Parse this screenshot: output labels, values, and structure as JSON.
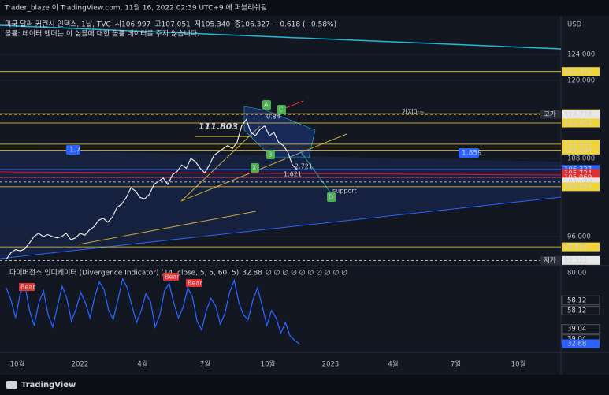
{
  "header": {
    "published": "Trader_blaze 이 TradingView.com, 11월 16, 2022 02:39 UTC+9 에 퍼블리쉬됨",
    "symbol": "미국 달러 커런시 인덱스, 1날, TVC",
    "open": "시106.997",
    "high": "고107.051",
    "low": "저105.340",
    "close": "종106.327",
    "change": "−0.618 (−0.58%)",
    "notice": "볼륨: 데이터 벤더는 이 심볼에 대한 볼륨 데이터를 주지 않습니다.",
    "currency": "USD"
  },
  "price_axis": {
    "ticks": [
      {
        "value": 124,
        "label": "124.000"
      },
      {
        "value": 120,
        "label": "120.000"
      },
      {
        "value": 108,
        "label": "108.000"
      },
      {
        "value": 96,
        "label": "96.000"
      }
    ],
    "markers": [
      {
        "value": 121.372,
        "label": "121.372",
        "color": "#f0d43a"
      },
      {
        "value": 114.888,
        "label": "114.888",
        "color": "#f0d43a"
      },
      {
        "value": 114.778,
        "label": "114.778",
        "color": "#e8e8e8",
        "tag": "고가"
      },
      {
        "value": 113.452,
        "label": "113.452",
        "color": "#f0d43a"
      },
      {
        "value": 110.2,
        "label": "110.200",
        "color": "#f0d43a"
      },
      {
        "value": 109.744,
        "label": "109.744",
        "color": "#f0d43a"
      },
      {
        "value": 109.284,
        "label": "109.284",
        "color": "#f0d43a"
      },
      {
        "value": 106.327,
        "label": "106.327",
        "color": "#2962ff",
        "countdown": "06:20:46"
      },
      {
        "value": 105.724,
        "label": "105.724",
        "color": "#e0302f"
      },
      {
        "value": 105.069,
        "label": "105.069",
        "color": "#e0302f"
      },
      {
        "value": 104.378,
        "label": "104.378",
        "color": "#e8e8e8"
      },
      {
        "value": 103.654,
        "label": "103.654",
        "color": "#f0d43a"
      },
      {
        "value": 94.412,
        "label": "94.412",
        "color": "#f0d43a"
      },
      {
        "value": 92.322,
        "label": "92.322",
        "color": "#e8e8e8",
        "tag": "저가"
      }
    ]
  },
  "price": [
    92.5,
    93.5,
    94,
    93.8,
    94.1,
    95,
    96,
    96.5,
    96,
    96.3,
    96,
    95.8,
    96,
    96.5,
    95.5,
    95.8,
    96.5,
    96.2,
    97,
    97.5,
    98.5,
    98.8,
    98.2,
    99,
    100.5,
    101,
    102,
    103.5,
    103,
    102,
    101.8,
    102.5,
    104,
    104.5,
    105,
    104,
    105.5,
    106,
    107,
    106.5,
    108,
    107.5,
    106.5,
    105.8,
    107,
    108.5,
    109,
    109.5,
    110,
    109.5,
    110.5,
    113,
    114,
    112,
    111.5,
    112.5,
    113,
    111.5,
    112,
    110.5,
    110,
    109,
    107,
    106.3
  ],
  "annotations": {
    "fib_level": "111.803",
    "left_ratio": "1.7",
    "right_ratio": "1.859",
    "comment": "가지마~",
    "support": "support",
    "points": [
      "A",
      "B",
      "C",
      "X",
      "D"
    ],
    "ratios": [
      "0.84",
      "1.621",
      "2.721"
    ]
  },
  "indicator": {
    "title": "다이버전스 인디케이터 (Divergence Indicator) (14, close, 5, 5, 60, 5)",
    "current": "32.88",
    "placeholders": "∅ ∅ ∅ ∅ ∅ ∅ ∅ ∅ ∅ ∅",
    "values": [
      70,
      62,
      50,
      66,
      72,
      55,
      45,
      60,
      68,
      52,
      44,
      58,
      71,
      63,
      48,
      56,
      67,
      60,
      50,
      64,
      74,
      69,
      55,
      49,
      62,
      76,
      70,
      58,
      47,
      55,
      66,
      61,
      44,
      52,
      68,
      73,
      60,
      50,
      57,
      70,
      64,
      48,
      42,
      55,
      63,
      58,
      46,
      53,
      67,
      75,
      60,
      52,
      49,
      62,
      70,
      58,
      45,
      55,
      50,
      40,
      47,
      38,
      35,
      32.88
    ],
    "ticks": [
      {
        "value": 80,
        "label": "80.00"
      }
    ],
    "markers": [
      {
        "value": 58.12,
        "label": "58.12",
        "color": "#e8e8e8"
      },
      {
        "value": 58.12,
        "label": "58.12",
        "color": "#e8e8e8"
      },
      {
        "value": 39.04,
        "label": "39.04",
        "color": "#e8e8e8"
      },
      {
        "value": 39.04,
        "label": "39.04",
        "color": "#e8e8e8"
      },
      {
        "value": 32.88,
        "label": "32.88",
        "color": "#2962ff"
      }
    ],
    "signals": [
      "Bear",
      "Bear",
      "Bear"
    ]
  },
  "time_axis": [
    "10월",
    "2022",
    "4월",
    "7월",
    "10월",
    "2023",
    "4월",
    "7월",
    "10월"
  ],
  "footer": "TradingView"
}
